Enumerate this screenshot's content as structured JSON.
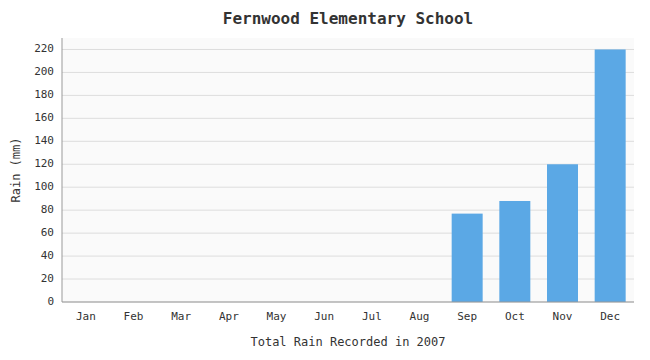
{
  "chart_data": {
    "type": "bar",
    "title": "Fernwood Elementary School",
    "xlabel": "Total Rain Recorded in 2007",
    "ylabel": "Rain (mm)",
    "categories": [
      "Jan",
      "Feb",
      "Mar",
      "Apr",
      "May",
      "Jun",
      "Jul",
      "Aug",
      "Sep",
      "Oct",
      "Nov",
      "Dec"
    ],
    "values": [
      0,
      0,
      0,
      0,
      0,
      0,
      0,
      0,
      77,
      88,
      120,
      220
    ],
    "color": "#5ba8e5",
    "ylim": [
      0,
      230
    ],
    "yticks": [
      0,
      20,
      40,
      60,
      80,
      100,
      120,
      140,
      160,
      180,
      200,
      220
    ],
    "grid": true
  }
}
